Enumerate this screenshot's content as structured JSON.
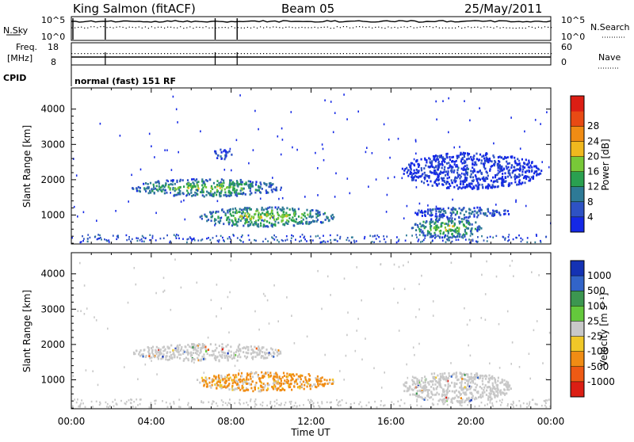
{
  "header": {
    "station": "King Salmon (fitACF)",
    "beam": "Beam 05",
    "date": "25/May/2011"
  },
  "top_panels": {
    "nsky_label": "N.Sky",
    "nsearch_label": "N.Search",
    "nsky_ticks": [
      "10^5",
      "10^0"
    ],
    "freq_label_1": "Freq.",
    "freq_label_2": "[MHz]",
    "freq_ticks": [
      "18",
      "8"
    ],
    "nave_label": "Nave",
    "nave_ticks": [
      "60",
      "0"
    ],
    "cpid_label": "CPID",
    "cpid_text": "normal (fast) 151 RF"
  },
  "chart_data": [
    {
      "type": "heatmap",
      "name": "power",
      "ylabel": "Slant Range [km]",
      "ylim": [
        180,
        4600
      ],
      "y_ticks": [
        "1000",
        "2000",
        "3000",
        "4000"
      ],
      "colorbar": {
        "label": "Power [dB]",
        "ticks": [
          "4",
          "8",
          "12",
          "16",
          "20",
          "24",
          "28"
        ],
        "colors": [
          "#1428e6",
          "#2e52c4",
          "#2e7a96",
          "#2aa050",
          "#78c838",
          "#f0b81e",
          "#f08c14",
          "#e84a14",
          "#dc1e14"
        ]
      },
      "echo_regions": [
        {
          "t0": 3.0,
          "t1": 10.5,
          "r0": 1550,
          "r1": 2050,
          "level": 0.55
        },
        {
          "t0": 6.2,
          "t1": 13.2,
          "r0": 700,
          "r1": 1250,
          "level": 0.6
        },
        {
          "t0": 17.0,
          "t1": 20.5,
          "r0": 380,
          "r1": 950,
          "level": 0.55
        },
        {
          "t0": 17.0,
          "t1": 22.0,
          "r0": 950,
          "r1": 1250,
          "level": 0.3
        },
        {
          "t0": 7.0,
          "t1": 8.0,
          "r0": 2600,
          "r1": 2900,
          "level": 0.25
        },
        {
          "t0": 16.5,
          "t1": 23.5,
          "r0": 1750,
          "r1": 2800,
          "level": 0.15
        }
      ]
    },
    {
      "type": "heatmap",
      "name": "velocity",
      "xlabel": "Time UT",
      "x_ticks": [
        "00:00",
        "04:00",
        "08:00",
        "12:00",
        "16:00",
        "20:00",
        "00:00"
      ],
      "ylabel": "Slant Range [km]",
      "ylim": [
        180,
        4600
      ],
      "y_ticks": [
        "1000",
        "2000",
        "3000",
        "4000"
      ],
      "colorbar": {
        "label": "Velocity [m s⁻¹]",
        "ticks": [
          "1000",
          "500",
          "100",
          "25",
          "-25",
          "-100",
          "-500",
          "-1000"
        ],
        "colors": [
          "#1432b4",
          "#3264c8",
          "#3c9650",
          "#64c83c",
          "#c8c8c8",
          "#f0c828",
          "#f08c14",
          "#ee5a14",
          "#dc1e14"
        ]
      },
      "echo_regions": [
        {
          "t0": 3.0,
          "t1": 10.5,
          "r0": 1550,
          "r1": 2050,
          "velocity": "ground"
        },
        {
          "t0": 6.2,
          "t1": 13.2,
          "r0": 700,
          "r1": 1250,
          "velocity": "-100"
        },
        {
          "t0": 16.5,
          "t1": 22.0,
          "r0": 380,
          "r1": 1250,
          "velocity": "ground"
        }
      ]
    }
  ]
}
